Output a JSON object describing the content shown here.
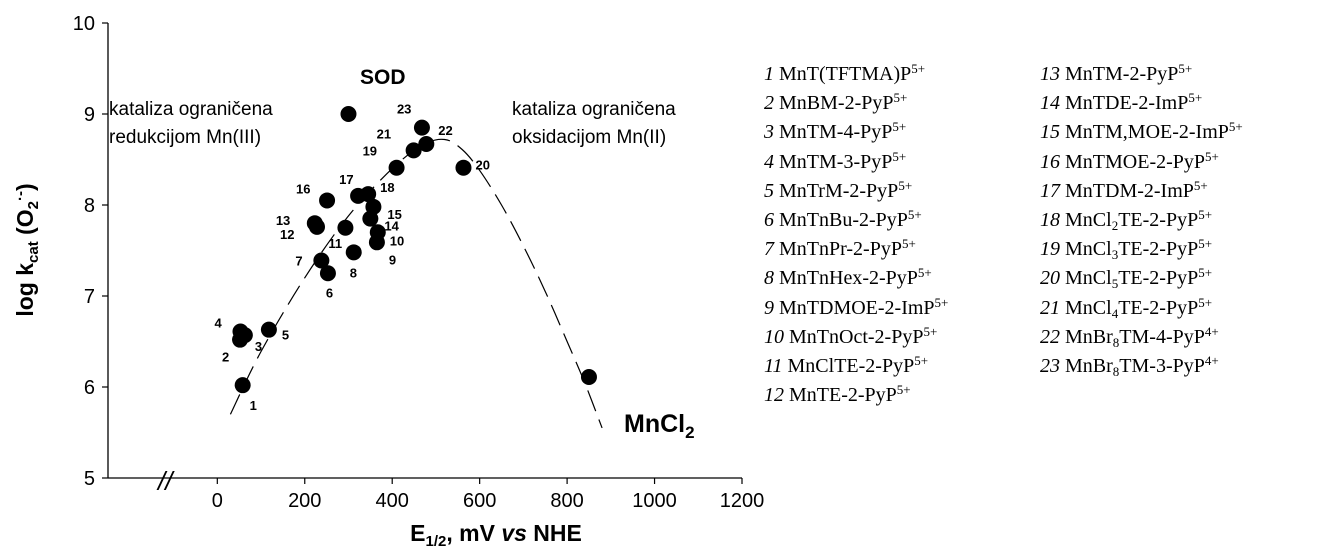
{
  "chart_data": {
    "type": "scatter",
    "title": "",
    "xlabel": {
      "main": "E",
      "sub": "1/2",
      "rest": ", mV ",
      "italic": "vs",
      "tail": " NHE"
    },
    "ylabel": {
      "main": "log k",
      "sub": "cat",
      "rest": " (O",
      "sub2": "2",
      "sup2": "·-",
      "close": ")"
    },
    "xlim": [
      -250,
      1200
    ],
    "ylim": [
      5,
      10
    ],
    "xticks": [
      "0",
      "200",
      "400",
      "600",
      "800",
      "1000",
      "1200"
    ],
    "yticks": [
      "5",
      "6",
      "7",
      "8",
      "9",
      "10"
    ],
    "axis_break_label": "//",
    "grid": false,
    "points": [
      {
        "label": "1",
        "x": 58,
        "y": 6.02
      },
      {
        "label": "2",
        "x": 52,
        "y": 6.52
      },
      {
        "label": "3",
        "x": 63,
        "y": 6.57
      },
      {
        "label": "4",
        "x": 53,
        "y": 6.61
      },
      {
        "label": "5",
        "x": 118,
        "y": 6.63
      },
      {
        "label": "6",
        "x": 253,
        "y": 7.25
      },
      {
        "label": "7",
        "x": 238,
        "y": 7.39
      },
      {
        "label": "8",
        "x": 312,
        "y": 7.48
      },
      {
        "label": "9",
        "x": 365,
        "y": 7.59
      },
      {
        "label": "10",
        "x": 367,
        "y": 7.7
      },
      {
        "label": "11",
        "x": 293,
        "y": 7.75
      },
      {
        "label": "12",
        "x": 228,
        "y": 7.76
      },
      {
        "label": "13",
        "x": 223,
        "y": 7.8
      },
      {
        "label": "14",
        "x": 350,
        "y": 7.85
      },
      {
        "label": "15",
        "x": 357,
        "y": 7.98
      },
      {
        "label": "16",
        "x": 251,
        "y": 8.05
      },
      {
        "label": "17",
        "x": 322,
        "y": 8.1
      },
      {
        "label": "18",
        "x": 345,
        "y": 8.12
      },
      {
        "label": "19",
        "x": 410,
        "y": 8.41
      },
      {
        "label": "20",
        "x": 563,
        "y": 8.41
      },
      {
        "label": "21",
        "x": 449,
        "y": 8.6
      },
      {
        "label": "22",
        "x": 478,
        "y": 8.67
      },
      {
        "label": "23",
        "x": 468,
        "y": 8.85
      },
      {
        "label": "SOD",
        "x": 300,
        "y": 9.0
      },
      {
        "label": "MnCl2",
        "x": 850,
        "y": 6.11
      }
    ],
    "annotations": {
      "sod": "SOD",
      "mncl2": {
        "main": "MnCl",
        "sub": "2"
      },
      "left_line1": "kataliza ograničena",
      "left_line2": "redukcijom Mn(III)",
      "right_line1": "kataliza ograničena",
      "right_line2": "oksidacijom Mn(II)"
    },
    "fit_curve": {
      "style": "dashed",
      "x": [
        30,
        100,
        200,
        300,
        400,
        470,
        520,
        560,
        600,
        650,
        700,
        750,
        800,
        840,
        880
      ],
      "y": [
        5.7,
        6.39,
        7.2,
        7.88,
        8.4,
        8.66,
        8.72,
        8.61,
        8.38,
        8.0,
        7.55,
        7.05,
        6.5,
        6.05,
        5.55
      ]
    }
  },
  "legend": [
    {
      "num": "1",
      "parts": [
        {
          "t": "MnT(TFTMA)P"
        },
        {
          "sup": "5+"
        }
      ]
    },
    {
      "num": "2",
      "parts": [
        {
          "t": "MnBM-2-PyP"
        },
        {
          "sup": "5+"
        }
      ]
    },
    {
      "num": "3",
      "parts": [
        {
          "t": "MnTM-4-PyP"
        },
        {
          "sup": "5+"
        }
      ]
    },
    {
      "num": "4",
      "parts": [
        {
          "t": "MnTM-3-PyP"
        },
        {
          "sup": "5+"
        }
      ]
    },
    {
      "num": "5",
      "parts": [
        {
          "t": "MnTrM-2-PyP"
        },
        {
          "sup": "5+"
        }
      ]
    },
    {
      "num": "6",
      "parts": [
        {
          "t": "MnTnBu-2-PyP"
        },
        {
          "sup": "5+"
        }
      ]
    },
    {
      "num": "7",
      "parts": [
        {
          "t": "MnTnPr-2-PyP"
        },
        {
          "sup": "5+"
        }
      ]
    },
    {
      "num": "8",
      "parts": [
        {
          "t": "MnTnHex-2-PyP"
        },
        {
          "sup": "5+"
        }
      ]
    },
    {
      "num": "9",
      "parts": [
        {
          "t": "MnTDMOE-2-ImP"
        },
        {
          "sup": "5+"
        }
      ]
    },
    {
      "num": "10",
      "parts": [
        {
          "t": "MnTnOct-2-PyP"
        },
        {
          "sup": "5+"
        }
      ]
    },
    {
      "num": "11",
      "parts": [
        {
          "t": "MnClTE-2-PyP"
        },
        {
          "sup": "5+"
        }
      ]
    },
    {
      "num": "12",
      "parts": [
        {
          "t": "MnTE-2-PyP"
        },
        {
          "sup": "5+"
        }
      ]
    },
    {
      "num": "13",
      "parts": [
        {
          "t": "MnTM-2-PyP"
        },
        {
          "sup": "5+"
        }
      ]
    },
    {
      "num": "14",
      "parts": [
        {
          "t": "MnTDE-2-ImP"
        },
        {
          "sup": "5+"
        }
      ]
    },
    {
      "num": "15",
      "parts": [
        {
          "t": "MnTM,MOE-2-ImP"
        },
        {
          "sup": "5+"
        }
      ]
    },
    {
      "num": "16",
      "parts": [
        {
          "t": "MnTMOE-2-PyP"
        },
        {
          "sup": "5+"
        }
      ]
    },
    {
      "num": "17",
      "parts": [
        {
          "t": "MnTDM-2-ImP"
        },
        {
          "sup": "5+"
        }
      ]
    },
    {
      "num": "18",
      "parts": [
        {
          "t": "MnCl"
        },
        {
          "sub": "2"
        },
        {
          "t": "TE-2-PyP"
        },
        {
          "sup": "5+"
        }
      ]
    },
    {
      "num": "19",
      "parts": [
        {
          "t": "MnCl"
        },
        {
          "sub": "3"
        },
        {
          "t": "TE-2-PyP"
        },
        {
          "sup": "5+"
        }
      ]
    },
    {
      "num": "20",
      "parts": [
        {
          "t": "MnCl"
        },
        {
          "sub": "5"
        },
        {
          "t": "TE-2-PyP"
        },
        {
          "sup": "5+"
        }
      ]
    },
    {
      "num": "21",
      "parts": [
        {
          "t": "MnCl"
        },
        {
          "sub": "4"
        },
        {
          "t": "TE-2-PyP"
        },
        {
          "sup": "5+"
        }
      ]
    },
    {
      "num": "22",
      "parts": [
        {
          "t": "MnBr"
        },
        {
          "sub": "8"
        },
        {
          "t": "TM-4-PyP"
        },
        {
          "sup": "4+"
        }
      ]
    },
    {
      "num": "23",
      "parts": [
        {
          "t": "MnBr"
        },
        {
          "sub": "8"
        },
        {
          "t": "TM-3-PyP"
        },
        {
          "sup": "4+"
        }
      ]
    }
  ]
}
